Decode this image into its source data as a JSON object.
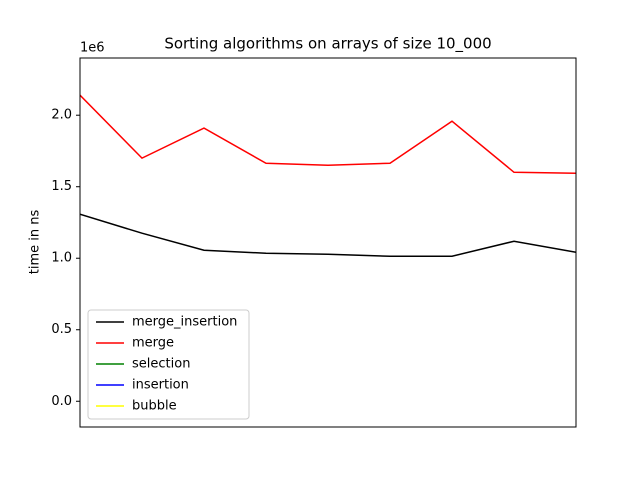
{
  "chart_data": {
    "type": "line",
    "title": "Sorting algorithms on arrays of size 10_000",
    "ylabel": "time in ns",
    "offset_label": "1e6",
    "x": [
      0,
      1,
      2,
      3,
      4,
      5,
      6,
      7,
      8
    ],
    "xlim": [
      0,
      8
    ],
    "ylim": [
      -180000,
      2400000
    ],
    "yticks": [
      {
        "value": 0,
        "label": "0.0"
      },
      {
        "value": 500000,
        "label": "0.5"
      },
      {
        "value": 1000000,
        "label": "1.0"
      },
      {
        "value": 1500000,
        "label": "1.5"
      },
      {
        "value": 2000000,
        "label": "2.0"
      }
    ],
    "legend": "lower left",
    "series": [
      {
        "name": "merge_insertion",
        "color": "#000000",
        "values": [
          1308000,
          1175000,
          1056000,
          1035000,
          1028000,
          1014000,
          1014000,
          1119000,
          1042000
        ]
      },
      {
        "name": "merge",
        "color": "#ff0000",
        "values": [
          2140000,
          1700000,
          1910000,
          1664000,
          1650000,
          1664000,
          1958000,
          1601000,
          1594000
        ]
      },
      {
        "name": "selection",
        "color": "#008000",
        "values": [
          null,
          null,
          null,
          null,
          null,
          null,
          null,
          null,
          null
        ]
      },
      {
        "name": "insertion",
        "color": "#0000ff",
        "values": [
          null,
          null,
          null,
          null,
          null,
          null,
          null,
          null,
          null
        ]
      },
      {
        "name": "bubble",
        "color": "#ffff00",
        "values": [
          null,
          null,
          null,
          null,
          null,
          null,
          null,
          null,
          null
        ]
      }
    ]
  }
}
